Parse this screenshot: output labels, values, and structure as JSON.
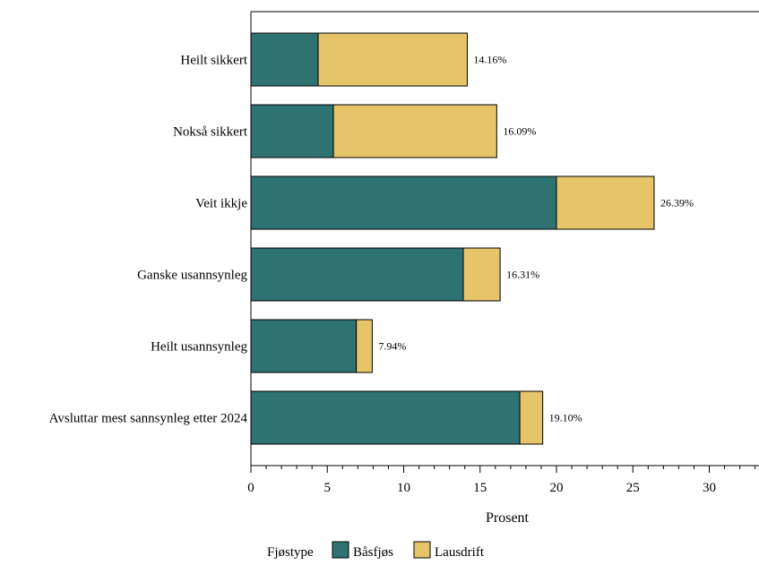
{
  "chart_data": {
    "type": "bar",
    "orientation": "horizontal",
    "stacked": true,
    "categories": [
      "Heilt sikkert",
      "Nokså sikkert",
      "Veit ikkje",
      "Ganske usannsynleg",
      "Heilt usannsynleg",
      "Avsluttar mest sannsynleg etter 2024"
    ],
    "series": [
      {
        "name": "Båsfjøs",
        "color": "#2e7272",
        "values": [
          4.4,
          5.4,
          20.0,
          13.9,
          6.9,
          17.6
        ]
      },
      {
        "name": "Lausdrift",
        "color": "#e6c46a",
        "values": [
          9.76,
          10.69,
          6.39,
          2.41,
          1.04,
          1.5
        ]
      }
    ],
    "data_labels": [
      "14.16%",
      "16.09%",
      "26.39%",
      "16.31%",
      "7.94%",
      "19.10%"
    ],
    "xlabel": "Prosent",
    "ylabel": "",
    "xlim": [
      0,
      33
    ],
    "x_ticks": [
      0,
      5,
      10,
      15,
      20,
      25,
      30
    ],
    "x_ticks_labels": [
      "0",
      "5",
      "10",
      "15",
      "20",
      "25",
      "30"
    ],
    "x_minor_step": 1,
    "grid": false,
    "legend": {
      "title": "Fjøstype",
      "placement": "bottom",
      "entries": [
        "Båsfjøs",
        "Lausdrift"
      ]
    }
  }
}
